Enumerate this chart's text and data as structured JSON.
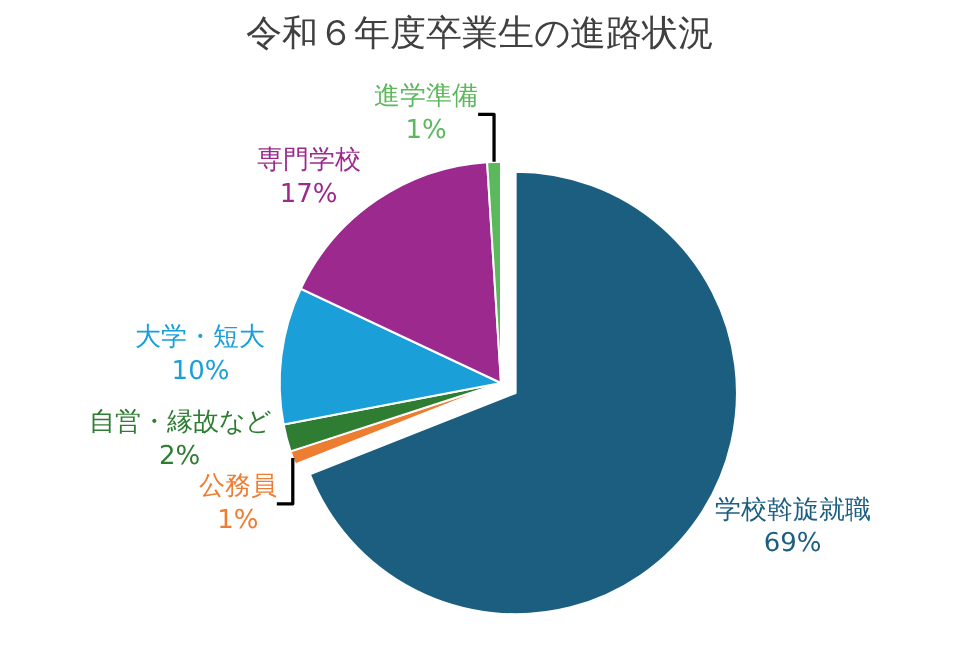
{
  "chart_data": {
    "type": "pie",
    "title": "令和６年度卒業生の進路状況",
    "categories": [
      "学校斡旋就職",
      "公務員",
      "自営・縁故など",
      "大学・短大",
      "専門学校",
      "進学準備"
    ],
    "values": [
      69,
      1,
      2,
      10,
      17,
      1
    ],
    "value_labels": [
      "69%",
      "1%",
      "2%",
      "10%",
      "17%",
      "1%"
    ],
    "colors": [
      "#1b5e80",
      "#ed7d31",
      "#2e7d32",
      "#1a9fd9",
      "#9c2a8e",
      "#5cb85c"
    ],
    "legend": false
  }
}
